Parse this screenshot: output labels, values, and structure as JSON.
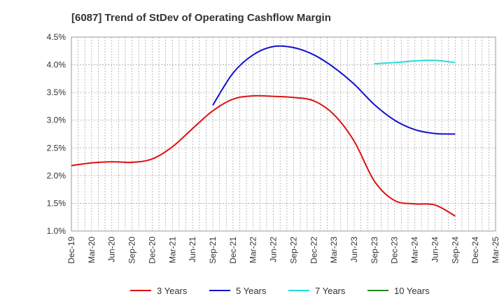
{
  "chart_data": {
    "type": "line",
    "title": "[6087]  Trend of StDev of Operating Cashflow Margin",
    "xlabel": "",
    "ylabel": "",
    "x": [
      "Dec-19",
      "Mar-20",
      "Jun-20",
      "Sep-20",
      "Dec-20",
      "Mar-21",
      "Jun-21",
      "Sep-21",
      "Dec-21",
      "Mar-22",
      "Jun-22",
      "Sep-22",
      "Dec-22",
      "Mar-23",
      "Jun-23",
      "Sep-23",
      "Dec-23",
      "Mar-24",
      "Jun-24",
      "Sep-24",
      "Dec-24",
      "Mar-25"
    ],
    "yticks": [
      "1.0%",
      "1.5%",
      "2.0%",
      "2.5%",
      "3.0%",
      "3.5%",
      "4.0%",
      "4.5%"
    ],
    "ylim": [
      1.0,
      4.5
    ],
    "grid": true,
    "legend_position": "bottom",
    "series": [
      {
        "name": "3 Years",
        "color": "#dd1111",
        "values": [
          2.18,
          2.23,
          2.25,
          2.24,
          2.3,
          2.52,
          2.85,
          3.17,
          3.38,
          3.44,
          3.43,
          3.41,
          3.35,
          3.1,
          2.62,
          1.9,
          1.55,
          1.49,
          1.47,
          1.27,
          null,
          null
        ]
      },
      {
        "name": "5 Years",
        "color": "#1111cc",
        "values": [
          null,
          null,
          null,
          null,
          null,
          null,
          null,
          3.27,
          3.85,
          4.18,
          4.33,
          4.31,
          4.18,
          3.95,
          3.65,
          3.28,
          3.0,
          2.83,
          2.76,
          2.75,
          null,
          null
        ]
      },
      {
        "name": "7 Years",
        "color": "#22dddd",
        "values": [
          null,
          null,
          null,
          null,
          null,
          null,
          null,
          null,
          null,
          null,
          null,
          null,
          null,
          null,
          null,
          4.02,
          4.04,
          4.07,
          4.08,
          4.04,
          null,
          null
        ]
      },
      {
        "name": "10 Years",
        "color": "#228822",
        "values": [
          null,
          null,
          null,
          null,
          null,
          null,
          null,
          null,
          null,
          null,
          null,
          null,
          null,
          null,
          null,
          null,
          null,
          null,
          null,
          null,
          null,
          null
        ]
      }
    ]
  }
}
